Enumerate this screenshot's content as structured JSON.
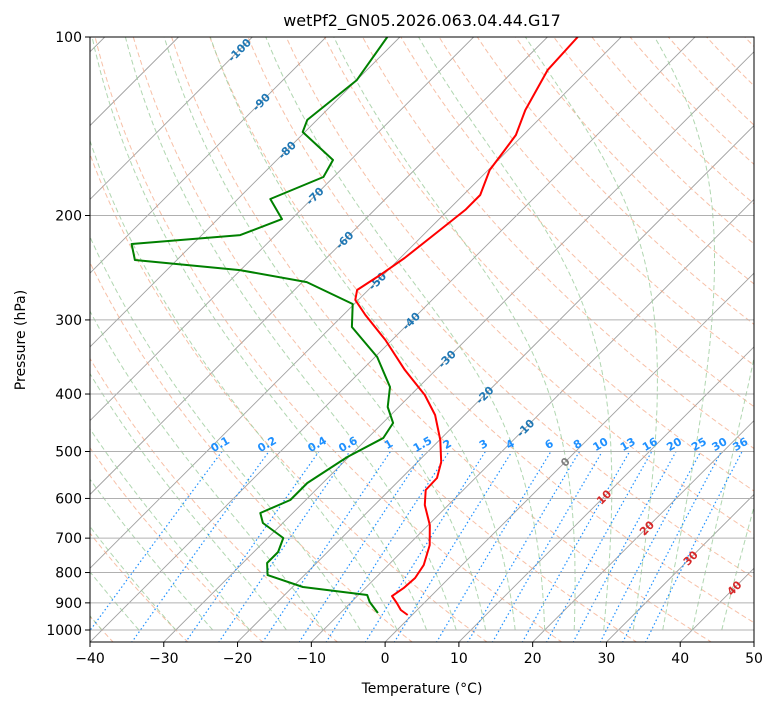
{
  "chart_data": {
    "type": "line",
    "title": "wetPf2_GN05.2026.063.04.44.G17",
    "xlabel": "Temperature (°C)",
    "ylabel": "Pressure (hPa)",
    "xlim": [
      -40,
      50
    ],
    "ylim": [
      1050,
      100
    ],
    "yscale": "log",
    "skew": "skew-T log-p",
    "grid": true,
    "x_ticks": [
      "−40",
      "−30",
      "−20",
      "−10",
      "0",
      "10",
      "20",
      "30",
      "40",
      "50"
    ],
    "x_tick_values": [
      -40,
      -30,
      -20,
      -10,
      0,
      10,
      20,
      30,
      40,
      50
    ],
    "y_ticks": [
      "100",
      "200",
      "300",
      "400",
      "500",
      "600",
      "700",
      "800",
      "900",
      "1000"
    ],
    "y_tick_values": [
      100,
      200,
      300,
      400,
      500,
      600,
      700,
      800,
      900,
      1000
    ],
    "isotherm_labels": [
      "-100",
      "-90",
      "-80",
      "-70",
      "-60",
      "-50",
      "-40",
      "-30",
      "-20",
      "-10",
      "0",
      "10",
      "20",
      "30",
      "40"
    ],
    "isotherm_values": [
      -100,
      -90,
      -80,
      -70,
      -60,
      -50,
      -40,
      -30,
      -20,
      -10,
      0,
      10,
      20,
      30,
      40
    ],
    "mixing_ratio_labels": [
      "0.1",
      "0.2",
      "0.4",
      "0.6",
      "1",
      "1.5",
      "2",
      "3",
      "4",
      "6",
      "8",
      "10",
      "13",
      "16",
      "20",
      "25",
      "30",
      "36"
    ],
    "mixing_ratio_values": [
      0.1,
      0.2,
      0.4,
      0.6,
      1,
      1.5,
      2,
      3,
      4,
      6,
      8,
      10,
      13,
      16,
      20,
      25,
      30,
      36
    ],
    "colors": {
      "temperature": "#ff0000",
      "dewpoint": "#008000",
      "isotherm": "#a0a0a0",
      "dry_adiabat": "#f4a582",
      "moist_adiabat": "#9ccc9c",
      "mixing_ratio": "#1e90ff",
      "label_cold": "#1f77b4",
      "label_zero": "#7f7f7f",
      "label_warm": "#d62728"
    },
    "series": [
      {
        "name": "Temperature",
        "color": "#ff0000",
        "p": [
          100,
          113.7,
          132.8,
          146.3,
          156.3,
          167.6,
          184.7,
          195.7,
          211.6,
          235.9,
          251.9,
          267.1,
          277.6,
          294.3,
          324.3,
          364.3,
          401.5,
          433.9,
          478.2,
          520.8,
          554.2,
          580.6,
          615.4,
          665.1,
          719.1,
          777.2,
          817.3,
          849.7,
          876.5,
          900.6,
          925.4,
          943.4
        ],
        "t": [
          -55.9,
          -55.5,
          -53.1,
          -51.0,
          -50.4,
          -49.8,
          -47.7,
          -47.7,
          -48.4,
          -49.4,
          -50.4,
          -51.5,
          -50.4,
          -47.0,
          -40.9,
          -34.2,
          -28.1,
          -24.0,
          -19.9,
          -16.8,
          -15.2,
          -15.1,
          -13.2,
          -9.8,
          -7.1,
          -5.2,
          -4.6,
          -4.8,
          -5.3,
          -3.7,
          -2.2,
          -0.6
        ]
      },
      {
        "name": "Dewpoint",
        "color": "#008000",
        "p": [
          100,
          118.2,
          138.0,
          144.6,
          161.2,
          172.2,
          187.6,
          202.8,
          215.8,
          223.4,
          237.7,
          247.2,
          259.0,
          282.0,
          308.3,
          346.4,
          389.3,
          420.7,
          447.6,
          474.5,
          510.8,
          565.0,
          603.6,
          634.9,
          659.9,
          699.5,
          738.7,
          770.9,
          808.0,
          846.2,
          872.9,
          897.1,
          936.2
        ],
        "t": [
          -81.7,
          -80.0,
          -81.3,
          -80.3,
          -72.4,
          -71.4,
          -75.6,
          -71.3,
          -74.8,
          -88.3,
          -85.7,
          -70.1,
          -59.4,
          -50.2,
          -47.2,
          -39.7,
          -33.9,
          -31.5,
          -28.6,
          -27.9,
          -30.2,
          -32.1,
          -32.1,
          -34.4,
          -32.7,
          -27.9,
          -26.7,
          -26.7,
          -25.0,
          -18.6,
          -8.8,
          -7.5,
          -4.9
        ]
      }
    ]
  }
}
